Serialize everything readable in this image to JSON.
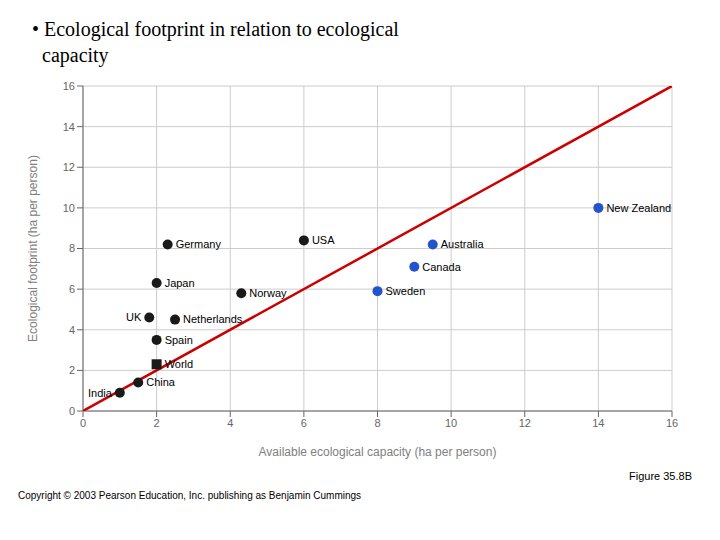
{
  "chart_data": {
    "type": "scatter",
    "title": "• Ecological footprint in relation to ecological\n  capacity",
    "x_label": "Available ecological capacity (ha per person)",
    "y_label": "Ecological footprint (ha per person)",
    "xlim": [
      0,
      16
    ],
    "ylim": [
      0,
      16
    ],
    "xticks": [
      0,
      2,
      4,
      6,
      8,
      10,
      12,
      14,
      16
    ],
    "yticks": [
      0,
      2,
      4,
      6,
      8,
      10,
      12,
      14,
      16
    ],
    "grid": true,
    "annotations": [
      "Figure 35.8B",
      "Copyright © 2003 Pearson Education, Inc. publishing as Benjamin Cummings"
    ],
    "series": [
      {
        "type": "line",
        "color": "#cc0000",
        "x": [
          0,
          16
        ],
        "values": [
          0,
          16
        ]
      },
      {
        "type": "scatter",
        "color": "#1a1a1a",
        "x": [
          1.0,
          1.5,
          2.0,
          2.0,
          1.8,
          2.5,
          2.0,
          2.3,
          4.3,
          6.0
        ],
        "values": [
          0.9,
          1.4,
          2.3,
          3.5,
          4.6,
          4.5,
          6.3,
          8.2,
          5.8,
          8.4
        ],
        "labels": [
          "India",
          "China",
          "World",
          "Spain",
          "UK",
          "Netherlands",
          "Japan",
          "Germany",
          "Norway",
          "USA"
        ],
        "markers": [
          "circle",
          "circle",
          "square",
          "circle",
          "circle",
          "circle",
          "circle",
          "circle",
          "circle",
          "circle"
        ]
      },
      {
        "type": "scatter",
        "color": "#2255cc",
        "x": [
          8.0,
          9.0,
          9.5,
          14.0
        ],
        "values": [
          5.9,
          7.1,
          8.2,
          10.0
        ],
        "labels": [
          "Sweden",
          "Canada",
          "Australia",
          "New Zealand"
        ],
        "marker": "circle"
      }
    ]
  }
}
